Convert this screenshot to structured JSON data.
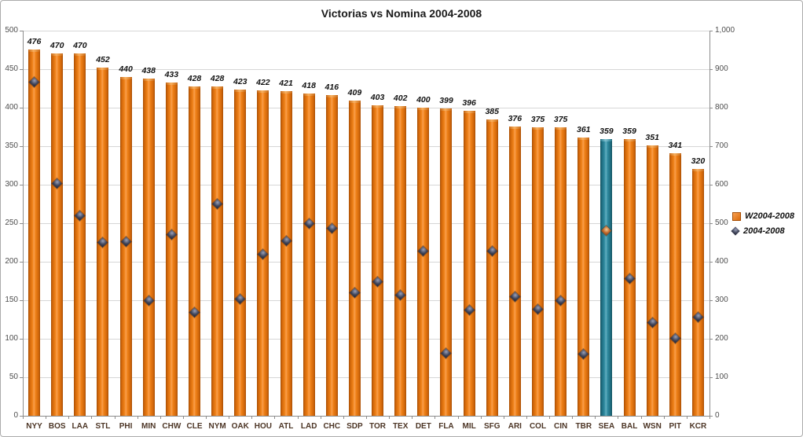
{
  "chart_data": {
    "type": "bar",
    "title": "Victorias vs Nomina 2004-2008",
    "categories": [
      "NYY",
      "BOS",
      "LAA",
      "STL",
      "PHI",
      "MIN",
      "CHW",
      "CLE",
      "NYM",
      "OAK",
      "HOU",
      "ATL",
      "LAD",
      "CHC",
      "SDP",
      "TOR",
      "TEX",
      "DET",
      "FLA",
      "MIL",
      "SFG",
      "ARI",
      "COL",
      "CIN",
      "TBR",
      "SEA",
      "BAL",
      "WSN",
      "PIT",
      "KCR"
    ],
    "series": [
      {
        "name": "W2004-2008",
        "type": "bar",
        "axis": "left",
        "values": [
          476,
          470,
          470,
          452,
          440,
          438,
          433,
          428,
          428,
          423,
          422,
          421,
          418,
          416,
          409,
          403,
          402,
          400,
          399,
          396,
          385,
          376,
          375,
          375,
          361,
          359,
          359,
          351,
          341,
          320
        ],
        "color": "#ef8118",
        "highlight_color": "#2f8aa0"
      },
      {
        "name": "2004-2008",
        "type": "scatter",
        "axis": "right",
        "values": [
          866,
          604,
          520,
          449,
          453,
          299,
          471,
          269,
          550,
          303,
          419,
          454,
          500,
          487,
          319,
          347,
          314,
          428,
          163,
          274,
          427,
          309,
          277,
          299,
          160,
          481,
          356,
          242,
          201,
          257
        ],
        "color": "#3f4458",
        "highlight_color": "#c0662a"
      }
    ],
    "highlight_category": "SEA",
    "left_axis": {
      "min": 0,
      "max": 500,
      "ticks": [
        "500",
        "450",
        "400",
        "350",
        "300",
        "250",
        "200",
        "150",
        "100",
        "50",
        "0"
      ]
    },
    "right_axis": {
      "min": 0,
      "max": 1000,
      "ticks": [
        "1,000",
        "900",
        "800",
        "700",
        "600",
        "500",
        "400",
        "300",
        "200",
        "100",
        "0"
      ]
    },
    "legend_position": "right",
    "grid": true,
    "bar_labels_visible": true
  },
  "colors": {
    "bar_orange": "#ef8118",
    "bar_teal": "#2f8aa0",
    "diamond_dark": "#3f4458",
    "diamond_orange": "#c0662a",
    "gridline": "#d6d6d6",
    "axis": "#8c8c8c",
    "category_label": "#4d3626"
  }
}
